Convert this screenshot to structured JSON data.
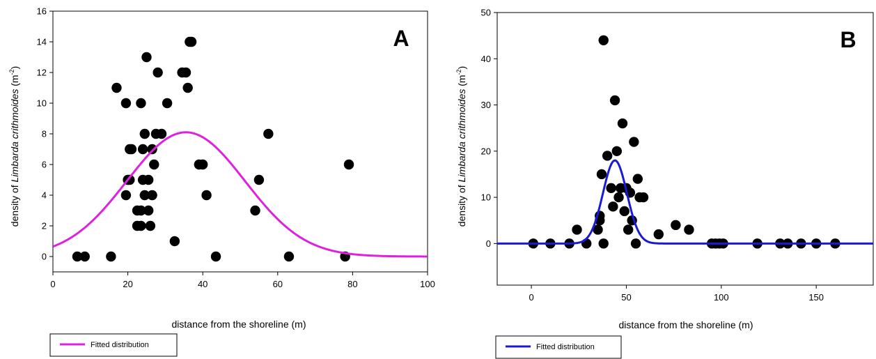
{
  "chart_data": [
    {
      "type": "scatter",
      "panel_label": "A",
      "xlabel": "distance from the shoreline (m)",
      "ylabel_prefix": "density of ",
      "ylabel_species": "Limbarda crithmoides",
      "ylabel_unit": " (m",
      "ylabel_exp": "-2",
      "ylabel_suffix": ")",
      "xlim": [
        0,
        100
      ],
      "ylim": [
        -1,
        16
      ],
      "xticks": [
        0,
        20,
        40,
        60,
        80,
        100
      ],
      "yticks": [
        0,
        2,
        4,
        6,
        8,
        10,
        12,
        14,
        16
      ],
      "grid": false,
      "legend_position": "bottom-left, below plot",
      "legend": "Fitted distribution",
      "series": [
        {
          "kind": "points",
          "x": [
            6.5,
            8.5,
            15.5,
            32.5,
            43.5,
            63,
            78,
            17,
            19.5,
            20.5,
            20,
            19.5,
            20.5,
            21,
            22.5,
            23.5,
            22.5,
            23.5,
            23.5,
            24,
            24.5,
            24,
            24.5,
            25,
            25.5,
            26,
            25.5,
            26.5,
            27,
            26.5,
            27.5,
            28,
            29,
            30.5,
            34.5,
            35.5,
            36,
            36.5,
            37,
            39,
            40,
            41,
            54,
            55,
            57.5,
            79
          ],
          "y": [
            0,
            0,
            0,
            1,
            0,
            0,
            0,
            11,
            10,
            5,
            5,
            4,
            7,
            7,
            3,
            3,
            2,
            2,
            10,
            5,
            4,
            7,
            8,
            13,
            3,
            2,
            5,
            4,
            6,
            7,
            8,
            12,
            8,
            10,
            12,
            12,
            11,
            14,
            14,
            6,
            6,
            4,
            3,
            5,
            8,
            6
          ]
        },
        {
          "kind": "curve",
          "name": "Fitted distribution",
          "model": "gaussian",
          "amplitude": 8.1,
          "center": 35.5,
          "sigma": 15.8,
          "color": "#e020e0"
        }
      ]
    },
    {
      "type": "scatter",
      "panel_label": "B",
      "xlabel": "distance from the shoreline (m)",
      "ylabel_prefix": "density of ",
      "ylabel_species": "Limbarda crithmoides",
      "ylabel_unit": " (m",
      "ylabel_exp": "-2",
      "ylabel_suffix": ")",
      "xlim": [
        -18,
        180
      ],
      "ylim": [
        -9,
        50
      ],
      "xticks": [
        0,
        50,
        100,
        150
      ],
      "yticks": [
        0,
        10,
        20,
        30,
        40,
        50
      ],
      "grid": false,
      "legend_position": "bottom-left, below plot",
      "legend": "Fitted distribution",
      "series": [
        {
          "kind": "points",
          "x": [
            1,
            10,
            20,
            24,
            29,
            35,
            36,
            37,
            36,
            38,
            38,
            40,
            42,
            43,
            44,
            45,
            46,
            47,
            48,
            49,
            50,
            51,
            52,
            53,
            54,
            55,
            56,
            57,
            59,
            67,
            76,
            83,
            95,
            97,
            99,
            101,
            119,
            131,
            135,
            142,
            150,
            160
          ],
          "y": [
            0,
            0,
            0,
            3,
            0,
            3,
            5,
            15,
            6,
            44,
            0,
            19,
            12,
            8,
            31,
            20,
            10,
            12,
            26,
            7,
            12,
            3,
            11,
            5,
            22,
            0,
            14,
            10,
            10,
            2,
            4,
            3,
            0,
            0,
            0,
            0,
            0,
            0,
            0,
            0,
            0,
            0
          ]
        },
        {
          "kind": "curve",
          "name": "Fitted distribution",
          "model": "gaussian",
          "amplitude": 18,
          "center": 44,
          "sigma": 6.3,
          "color": "#1a1ad6"
        }
      ]
    }
  ]
}
